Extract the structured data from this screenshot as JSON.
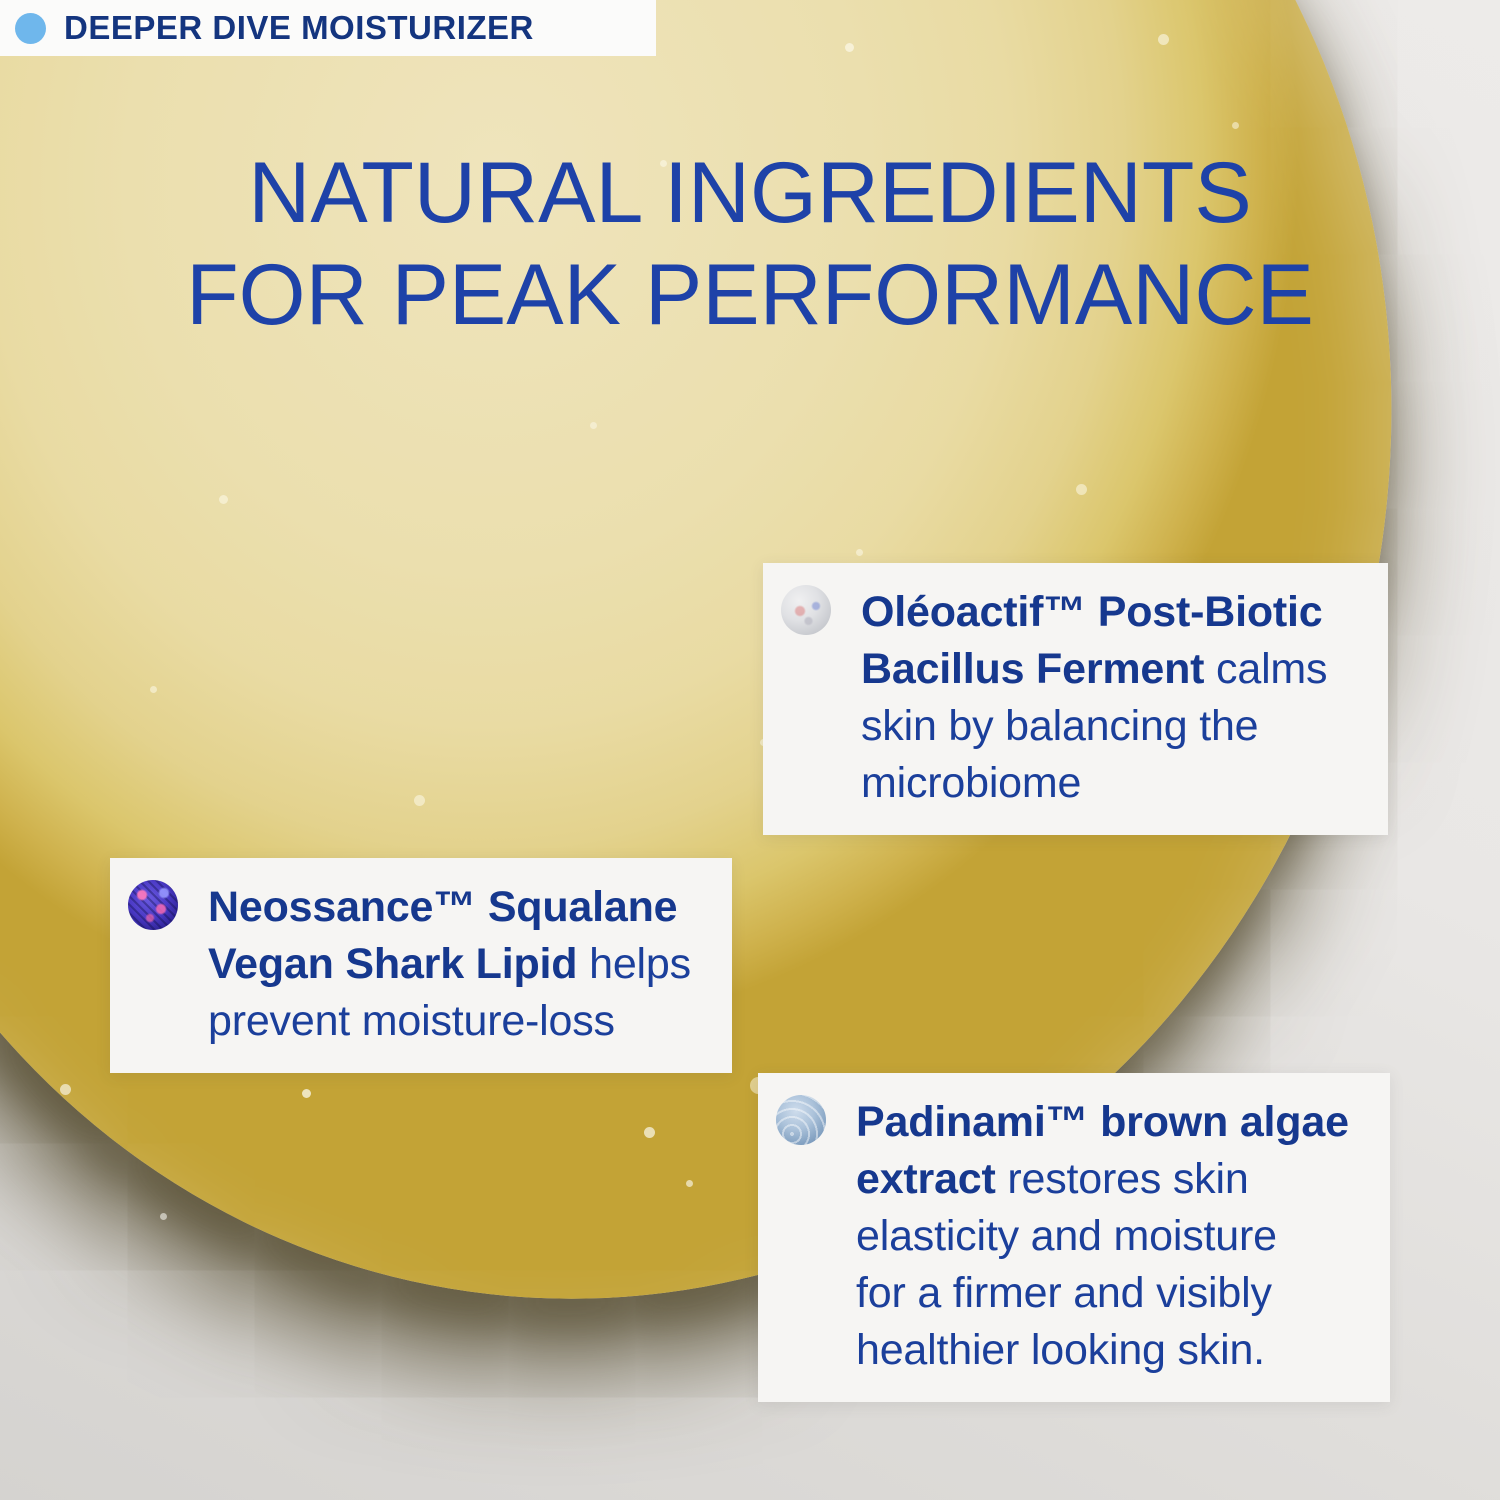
{
  "badge": {
    "dot_icon": "blue-dot",
    "label": "DEEPER DIVE MOISTURIZER"
  },
  "heading": {
    "line1": "NATURAL INGREDIENTS",
    "line2": "FOR PEAK PERFORMANCE"
  },
  "cards": [
    {
      "name": "oleoactif-post-biotic",
      "icon": "bacillus-ferment-culture-photo",
      "lines": [
        [
          {
            "t": "Oléoactif™ Post-Biotic",
            "b": true
          }
        ],
        [
          {
            "t": "Bacillus Ferment",
            "b": true
          },
          {
            "t": " calms",
            "b": false
          }
        ],
        [
          {
            "t": "skin by balancing the",
            "b": false
          }
        ],
        [
          {
            "t": "microbiome",
            "b": false
          }
        ]
      ]
    },
    {
      "name": "neossance-squalane",
      "icon": "squalane-lipid-microscope-photo",
      "lines": [
        [
          {
            "t": "Neossance™ Squalane",
            "b": true
          }
        ],
        [
          {
            "t": "Vegan Shark Lipid",
            "b": true
          },
          {
            "t": " helps",
            "b": false
          }
        ],
        [
          {
            "t": "prevent moisture-loss",
            "b": false
          }
        ]
      ]
    },
    {
      "name": "padinami-brown-algae",
      "icon": "brown-algae-extract-photo",
      "lines": [
        [
          {
            "t": "Padinami™ brown algae",
            "b": true
          }
        ],
        [
          {
            "t": "extract",
            "b": true
          },
          {
            "t": " restores skin",
            "b": false
          }
        ],
        [
          {
            "t": "elasticity and moisture",
            "b": false
          }
        ],
        [
          {
            "t": "for a firmer and visibly",
            "b": false
          }
        ],
        [
          {
            "t": "healthier looking skin.",
            "b": false
          }
        ]
      ]
    }
  ],
  "colors": {
    "heading_blue": "#1e42a8",
    "card_text_blue": "#1b3f9b",
    "badge_text_navy": "#14357f",
    "badge_dot_blue": "#6fb7ec",
    "moisturizer_yellow": "#ebdfae",
    "moisturizer_rim_gold": "#cfb24d",
    "background_gray": "#e9e7e5",
    "card_white": "#f6f5f3"
  }
}
